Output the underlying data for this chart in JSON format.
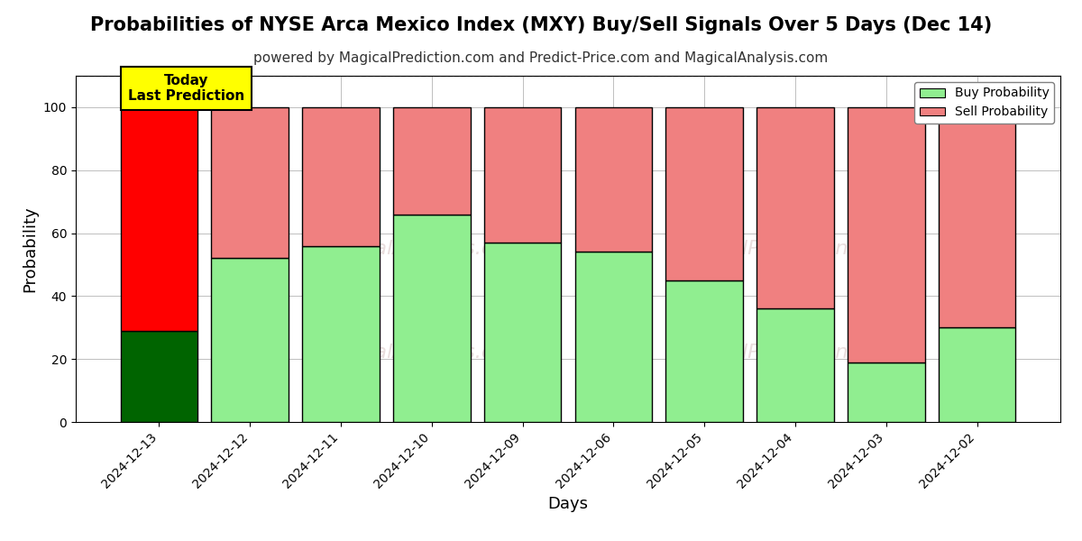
{
  "title": "Probabilities of NYSE Arca Mexico Index (MXY) Buy/Sell Signals Over 5 Days (Dec 14)",
  "subtitle": "powered by MagicalPrediction.com and Predict-Price.com and MagicalAnalysis.com",
  "xlabel": "Days",
  "ylabel": "Probability",
  "categories": [
    "2024-12-13",
    "2024-12-12",
    "2024-12-11",
    "2024-12-10",
    "2024-12-09",
    "2024-12-06",
    "2024-12-05",
    "2024-12-04",
    "2024-12-03",
    "2024-12-02"
  ],
  "buy_values": [
    29,
    52,
    56,
    66,
    57,
    54,
    45,
    36,
    19,
    30
  ],
  "sell_values": [
    71,
    48,
    44,
    34,
    43,
    46,
    55,
    64,
    81,
    70
  ],
  "buy_color_today": "#006400",
  "sell_color_today": "#FF0000",
  "buy_color_normal": "#90EE90",
  "sell_color_normal": "#F08080",
  "today_annotation": "Today\nLast Prediction",
  "legend_buy": "Buy Probability",
  "legend_sell": "Sell Probability",
  "ylim": [
    0,
    110
  ],
  "dashed_line_y": 110,
  "bar_edge_color": "#000000",
  "bar_linewidth": 1.0,
  "title_fontsize": 15,
  "subtitle_fontsize": 11,
  "axis_label_fontsize": 13,
  "tick_fontsize": 10,
  "bar_width": 0.85
}
